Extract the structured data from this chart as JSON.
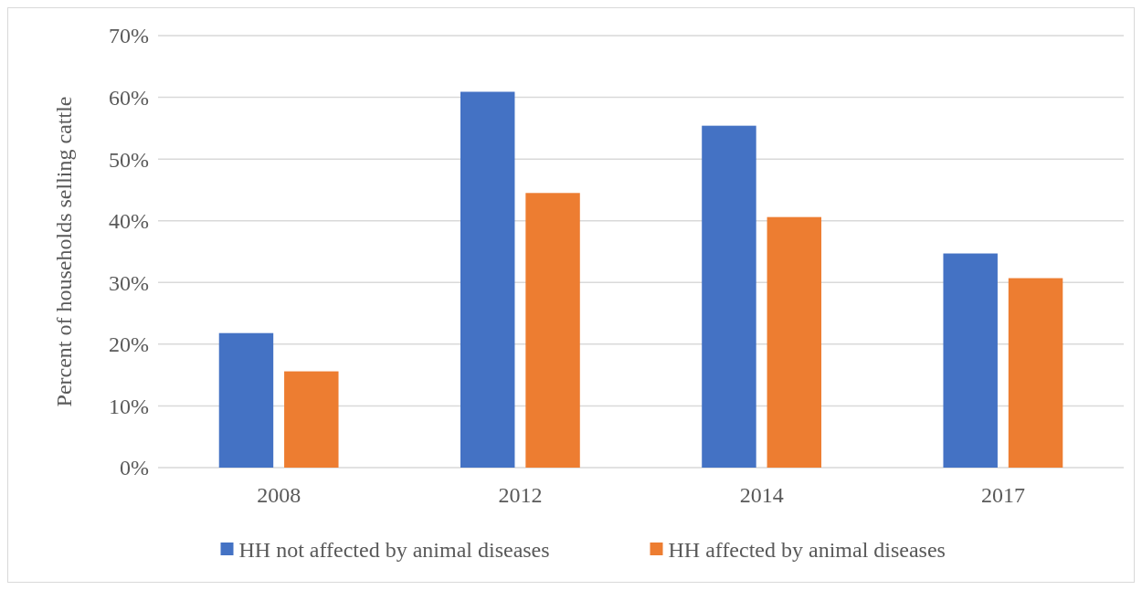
{
  "chart_data": {
    "type": "bar",
    "ylabel": "Percent of households selling cattle",
    "categories": [
      "2008",
      "2012",
      "2014",
      "2017"
    ],
    "series": [
      {
        "name": "HH not affected by animal diseases",
        "color": "#4472c4",
        "values": [
          21.8,
          60.9,
          55.4,
          34.7
        ]
      },
      {
        "name": "HH affected by animal diseases",
        "color": "#ed7d31",
        "values": [
          15.6,
          44.5,
          40.6,
          30.7
        ]
      }
    ],
    "ylim": [
      0,
      70
    ],
    "yticks": [
      {
        "value": 0,
        "label": "0%"
      },
      {
        "value": 10,
        "label": "10%"
      },
      {
        "value": 20,
        "label": "20%"
      },
      {
        "value": 30,
        "label": "30%"
      },
      {
        "value": 40,
        "label": "40%"
      },
      {
        "value": 50,
        "label": "50%"
      },
      {
        "value": 60,
        "label": "60%"
      },
      {
        "value": 70,
        "label": "70%"
      }
    ],
    "grid": "y",
    "legend": "bottom"
  }
}
